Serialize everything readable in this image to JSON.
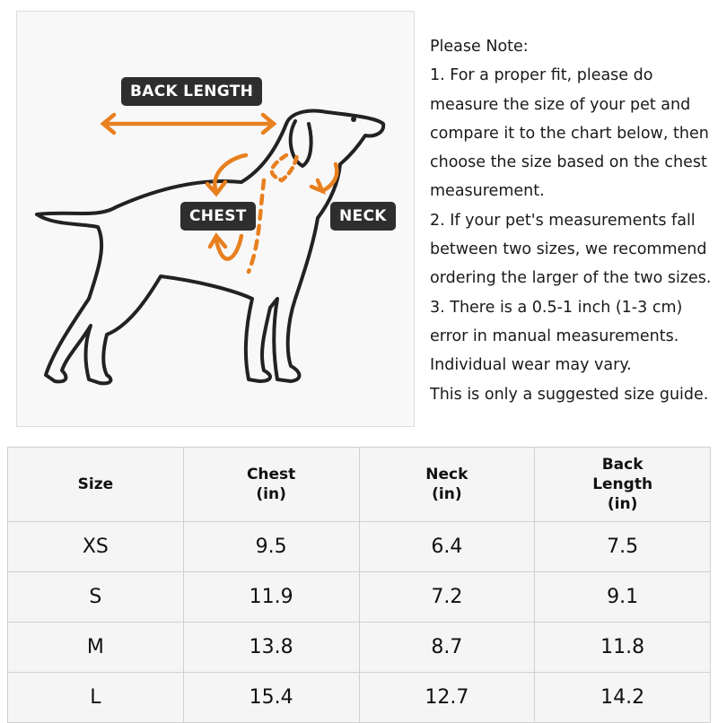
{
  "diagram": {
    "labels": {
      "back_length": "BACK LENGTH",
      "chest": "CHEST",
      "neck": "NECK"
    },
    "colors": {
      "accent": "#e8801f",
      "label_bg": "#2e2e2e",
      "outline": "#222222"
    }
  },
  "note": {
    "lines": [
      "Please Note:",
      "1. For a proper fit, please do",
      "measure the size of your pet and",
      "compare it to the chart below, then",
      "choose the size based on the chest",
      "measurement.",
      "2. If your pet's measurements fall",
      "between two sizes, we recommend",
      "ordering the larger of the two sizes.",
      "3. There is a 0.5-1 inch (1-3 cm)",
      "error in manual measurements.",
      "Individual wear may vary.",
      "This is only a suggested size guide."
    ]
  },
  "table": {
    "headers": [
      [
        "Size"
      ],
      [
        "Chest",
        "(in)"
      ],
      [
        "Neck",
        "(in)"
      ],
      [
        "Back",
        "Length",
        "(in)"
      ]
    ],
    "rows": [
      [
        "XS",
        "9.5",
        "6.4",
        "7.5"
      ],
      [
        "S",
        "11.9",
        "7.2",
        "9.1"
      ],
      [
        "M",
        "13.8",
        "8.7",
        "11.8"
      ],
      [
        "L",
        "15.4",
        "12.7",
        "14.2"
      ]
    ]
  }
}
